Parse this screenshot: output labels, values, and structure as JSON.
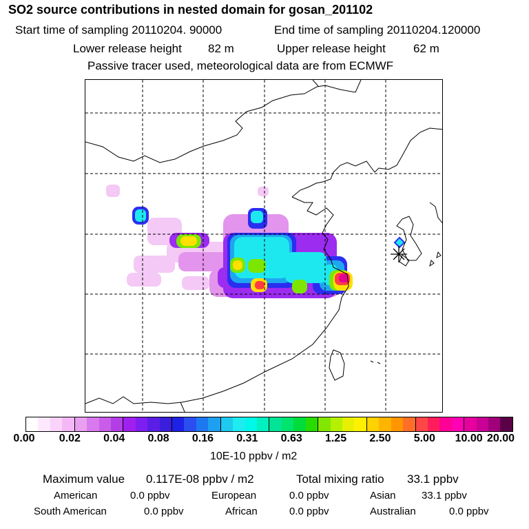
{
  "header": {
    "title": "SO2 source contributions in nested domain for gosan_201102",
    "start_time": "Start time of sampling 20110204. 90000",
    "end_time": "End time of sampling 20110204.120000",
    "lower_height_label": "Lower release height",
    "lower_height_value": "82 m",
    "upper_height_label": "Upper release height",
    "upper_height_value": "62 m",
    "note": "Passive tracer used, meteorological data are from ECMWF"
  },
  "colorbar": {
    "colors": [
      "#ffffff",
      "#fde8fd",
      "#fad2fa",
      "#f3b8f5",
      "#e9a0f0",
      "#d87aee",
      "#c95de9",
      "#b43ee6",
      "#a020f0",
      "#7f1ef0",
      "#5a1ee6",
      "#3a1edc",
      "#1e22e6",
      "#2a4ef0",
      "#1e78f0",
      "#1ea0f0",
      "#1ecaf0",
      "#1eecf0",
      "#00f8e8",
      "#00f0c0",
      "#00e496",
      "#00e46e",
      "#00dc3c",
      "#28dc00",
      "#82e600",
      "#b4f000",
      "#e6f000",
      "#fff000",
      "#ffd200",
      "#ffb400",
      "#ff9600",
      "#ff6e28",
      "#ff4646",
      "#ff1e5a",
      "#ff0096",
      "#ff00b4",
      "#e6009e",
      "#c80096",
      "#a0007a",
      "#5a0046"
    ],
    "tick_labels": [
      "0.00",
      "0.02",
      "0.04",
      "0.08",
      "0.16",
      "0.31",
      "0.63",
      "1.25",
      "2.50",
      "5.00",
      "10.00",
      "20.00"
    ],
    "units": "10E-10 ppbv / m2"
  },
  "stats": {
    "max_label": "Maximum value",
    "max_value": "0.117E-08 ppbv / m2",
    "total_label": "Total mixing ratio",
    "total_value": "33.1 ppbv"
  },
  "sources": [
    {
      "name": "American",
      "value": "0.0 ppbv"
    },
    {
      "name": "European",
      "value": "0.0 ppbv"
    },
    {
      "name": "Asian",
      "value": "33.1 ppbv"
    },
    {
      "name": "South American",
      "value": "0.0 ppbv"
    },
    {
      "name": "African",
      "value": "0.0 ppbv"
    },
    {
      "name": "Australian",
      "value": "0.0 ppbv"
    }
  ],
  "map": {
    "receptor_marker": "star-marker",
    "colors": {
      "plume_low": "#e9a0f0",
      "plume_mid": "#1eecf0",
      "plume_high": "#ff1e5a"
    }
  }
}
